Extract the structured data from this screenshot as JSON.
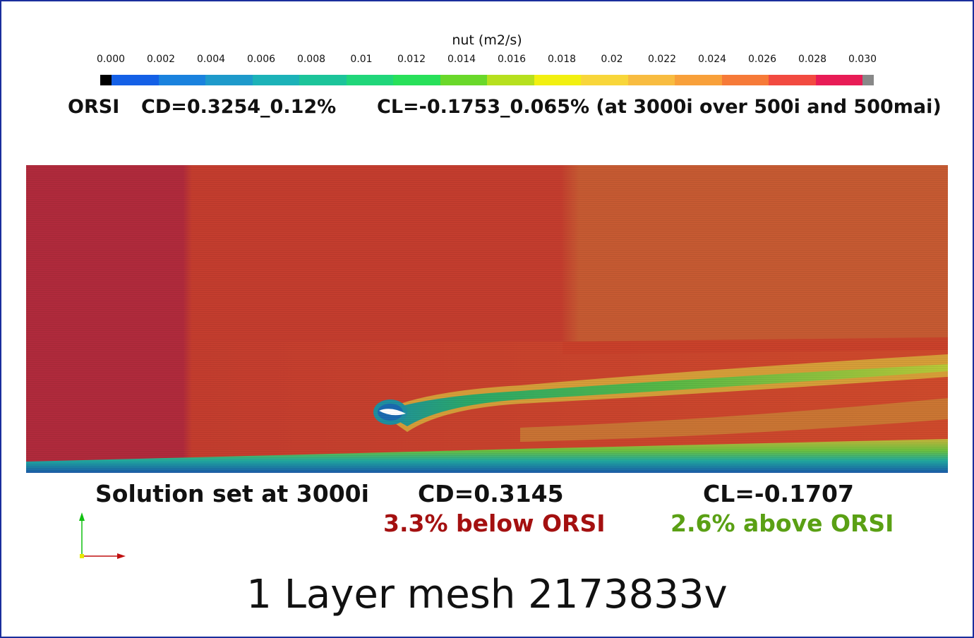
{
  "legend": {
    "title": "nut (m2/s)",
    "ticks": [
      "0.000",
      "0.002",
      "0.004",
      "0.006",
      "0.008",
      "0.01",
      "0.012",
      "0.014",
      "0.016",
      "0.018",
      "0.02",
      "0.022",
      "0.024",
      "0.026",
      "0.028",
      "0.030"
    ],
    "below_range_color": "#000000",
    "above_range_color": "#888888",
    "colors": [
      "#1460e6",
      "#1a82de",
      "#1e9acb",
      "#1cb2b8",
      "#1cc49a",
      "#20d67a",
      "#28e05a",
      "#6ad82a",
      "#b6e01e",
      "#f2f010",
      "#f8d63a",
      "#f8bc40",
      "#f8a03a",
      "#f67a38",
      "#f24a40",
      "#e81c56"
    ]
  },
  "reference": {
    "label": "ORSI",
    "cd": "CD=0.3254_0.12%",
    "cl": "CL=-0.1753_0.065% (at 3000i over 500i and 500mai)"
  },
  "results": {
    "solution": "Solution set at 3000i",
    "cd": "CD=0.3145",
    "cd_delta": "3.3% below ORSI",
    "cd_delta_color": "#a41010",
    "cl": "CL=-0.1707",
    "cl_delta": "2.6% above ORSI",
    "cl_delta_color": "#5aa014"
  },
  "mesh_title": "1 Layer mesh 2173833v",
  "field_colors": {
    "far_left": "#b02a3c",
    "middle": "#c43d2e",
    "far_right": "#c65a32",
    "wake_core": "#2aa86a",
    "wake_edge": "#a8c83a",
    "wall": "#1a5aa8"
  },
  "axes_colors": {
    "y": "#10c010",
    "x": "#c01010",
    "origin": "#e8e800"
  }
}
